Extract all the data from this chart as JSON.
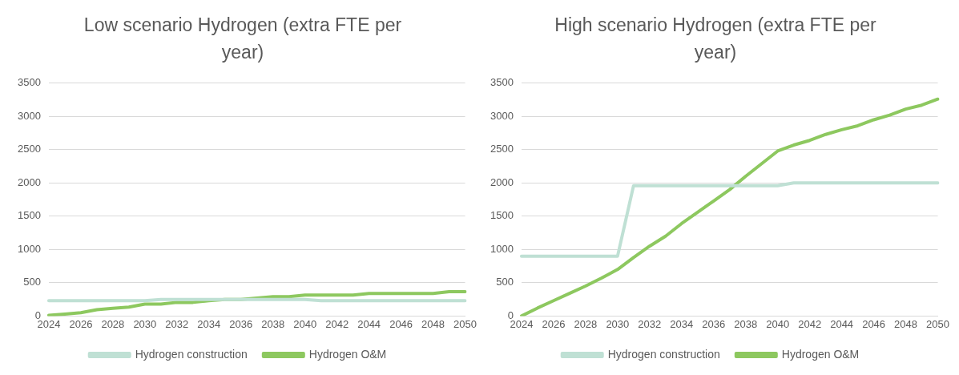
{
  "chart_data": [
    {
      "type": "line",
      "title": "Low scenario Hydrogen (extra FTE per year)",
      "categories": [
        "2024",
        null,
        "2026",
        null,
        "2028",
        null,
        "2030",
        null,
        "2032",
        null,
        "2034",
        null,
        "2036",
        null,
        "2038",
        null,
        "2040",
        null,
        "2042",
        null,
        "2044",
        null,
        "2046",
        null,
        "2048",
        null,
        "2050"
      ],
      "series": [
        {
          "name": "Hydrogen construction",
          "color": "#bfe0d4",
          "values": [
            230,
            230,
            230,
            230,
            230,
            230,
            230,
            250,
            250,
            250,
            250,
            250,
            250,
            250,
            250,
            250,
            250,
            230,
            230,
            230,
            230,
            230,
            230,
            230,
            230,
            230,
            230
          ]
        },
        {
          "name": "Hydrogen O&M",
          "color": "#8dc85f",
          "values": [
            10,
            30,
            50,
            95,
            115,
            135,
            180,
            180,
            205,
            205,
            230,
            250,
            250,
            270,
            290,
            290,
            315,
            315,
            315,
            315,
            340,
            340,
            340,
            340,
            340,
            365,
            365
          ]
        }
      ],
      "ylim": [
        0,
        3500
      ],
      "yticks": [
        0,
        500,
        1000,
        1500,
        2000,
        2500,
        3000,
        3500
      ],
      "grid": "y",
      "legend": "bottom",
      "marker": "none",
      "line_style": "solid"
    },
    {
      "type": "line",
      "title": "High scenario Hydrogen (extra FTE per year)",
      "categories": [
        "2024",
        null,
        "2026",
        null,
        "2028",
        null,
        "2030",
        null,
        "2032",
        null,
        "2034",
        null,
        "2036",
        null,
        "2038",
        null,
        "2040",
        null,
        "2042",
        null,
        "2044",
        null,
        "2046",
        null,
        "2048",
        null,
        "2050"
      ],
      "series": [
        {
          "name": "Hydrogen construction",
          "color": "#bfe0d4",
          "values": [
            900,
            900,
            900,
            900,
            900,
            900,
            900,
            1960,
            1960,
            1960,
            1960,
            1960,
            1960,
            1960,
            1960,
            1960,
            1960,
            2000,
            2000,
            2000,
            2000,
            2000,
            2000,
            2000,
            2000,
            2000,
            2000
          ]
        },
        {
          "name": "Hydrogen O&M",
          "color": "#8dc85f",
          "values": [
            0,
            120,
            230,
            340,
            450,
            570,
            700,
            880,
            1050,
            1200,
            1390,
            1560,
            1730,
            1900,
            2100,
            2290,
            2480,
            2570,
            2640,
            2730,
            2800,
            2860,
            2950,
            3020,
            3110,
            3170,
            3260
          ]
        }
      ],
      "ylim": [
        0,
        3500
      ],
      "yticks": [
        0,
        500,
        1000,
        1500,
        2000,
        2500,
        3000,
        3500
      ],
      "grid": "y",
      "legend": "bottom",
      "marker": "none",
      "line_style": "solid"
    }
  ]
}
